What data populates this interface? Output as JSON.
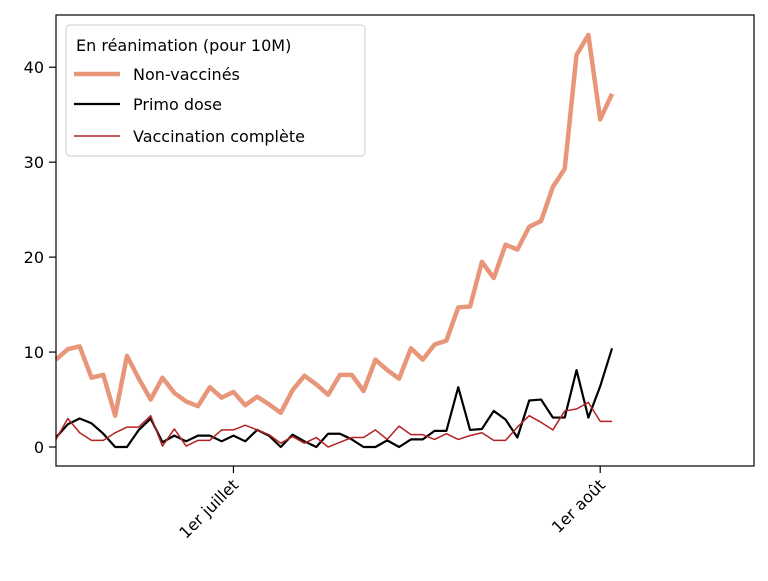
{
  "chart_data": {
    "type": "line",
    "title": "",
    "xlabel": "",
    "ylabel": "",
    "x_start": "2021-06-16",
    "x_end": "2021-08-01",
    "xlim": [
      "2021-06-16",
      "2021-08-14"
    ],
    "ylim": [
      -2,
      45.5
    ],
    "yticks": [
      0,
      10,
      20,
      30,
      40
    ],
    "xticks": [
      {
        "date": "2021-07-01",
        "label": "1er juillet"
      },
      {
        "date": "2021-08-01",
        "label": "1er août"
      }
    ],
    "grid": false,
    "legend": {
      "title": "En réanimation (pour 10M)",
      "position": "top-left"
    },
    "series": [
      {
        "name": "Non-vaccinés",
        "color": "#e8967a",
        "values": [
          9.2,
          10.3,
          10.6,
          7.3,
          7.6,
          3.3,
          9.6,
          7.2,
          5.0,
          7.3,
          5.7,
          4.8,
          4.3,
          6.3,
          5.2,
          5.8,
          4.4,
          5.3,
          4.5,
          3.6,
          6.0,
          7.5,
          6.6,
          5.5,
          7.6,
          7.6,
          5.9,
          9.2,
          8.1,
          7.2,
          10.4,
          9.2,
          10.8,
          11.2,
          14.7,
          14.8,
          19.5,
          17.8,
          21.3,
          20.8,
          23.2,
          23.8,
          27.4,
          29.3,
          41.3,
          43.4,
          34.5,
          37.2
        ]
      },
      {
        "name": "Primo dose",
        "color": "#000000",
        "values": [
          1.0,
          2.4,
          3.0,
          2.5,
          1.4,
          0.0,
          0.0,
          1.8,
          3.0,
          0.5,
          1.2,
          0.6,
          1.2,
          1.2,
          0.6,
          1.2,
          0.6,
          1.8,
          1.2,
          0.0,
          1.3,
          0.6,
          0.0,
          1.4,
          1.4,
          0.8,
          0.0,
          0.0,
          0.7,
          0.0,
          0.8,
          0.8,
          1.7,
          1.7,
          6.3,
          1.8,
          1.9,
          3.8,
          2.9,
          1.0,
          4.9,
          5.0,
          3.1,
          3.1,
          8.1,
          3.1,
          6.4,
          10.4
        ]
      },
      {
        "name": "Vaccination complète",
        "color": "#b22222",
        "values": [
          0.8,
          3.0,
          1.5,
          0.7,
          0.7,
          1.5,
          2.1,
          2.1,
          3.3,
          0.1,
          1.9,
          0.1,
          0.7,
          0.7,
          1.8,
          1.8,
          2.3,
          1.8,
          1.3,
          0.4,
          1.1,
          0.4,
          1.0,
          0.0,
          0.5,
          1.0,
          1.0,
          1.8,
          0.8,
          2.2,
          1.3,
          1.3,
          0.8,
          1.4,
          0.8,
          1.2,
          1.5,
          0.7,
          0.7,
          2.1,
          3.3,
          2.6,
          1.8,
          3.8,
          4.0,
          4.7,
          2.7,
          2.7
        ]
      }
    ]
  }
}
